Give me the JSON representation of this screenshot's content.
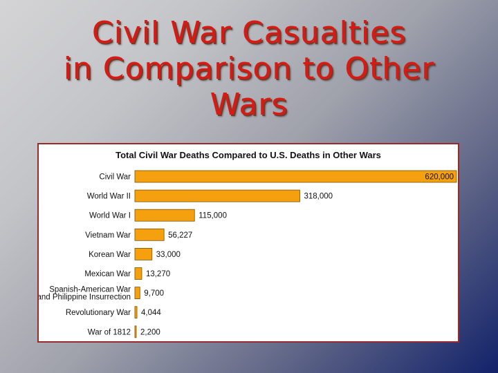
{
  "slide": {
    "title_lines": [
      "Civil War Casualties",
      "in Comparison to Other",
      "Wars"
    ]
  },
  "chart_data": {
    "type": "bar",
    "orientation": "horizontal",
    "title": "Total Civil War Deaths Compared to U.S. Deaths in Other Wars",
    "categories": [
      [
        "Civil War"
      ],
      [
        "World War II"
      ],
      [
        "World War I"
      ],
      [
        "Vietnam War"
      ],
      [
        "Korean War"
      ],
      [
        "Mexican War"
      ],
      [
        "Spanish-American War",
        "and Philippine Insurrection"
      ],
      [
        "Revolutionary War"
      ],
      [
        "War of 1812"
      ]
    ],
    "values": [
      620000,
      318000,
      115000,
      56227,
      33000,
      13270,
      9700,
      4044,
      2200
    ],
    "value_labels": [
      "620,000",
      "318,000",
      "115,000",
      "56,227",
      "33,000",
      "13,270",
      "9,700",
      "4,044",
      "2,200"
    ],
    "bar_color": "#f5a00e",
    "bar_stroke": "#7a5200",
    "xlim": [
      0,
      620000
    ],
    "grid": false,
    "legend": "none"
  }
}
